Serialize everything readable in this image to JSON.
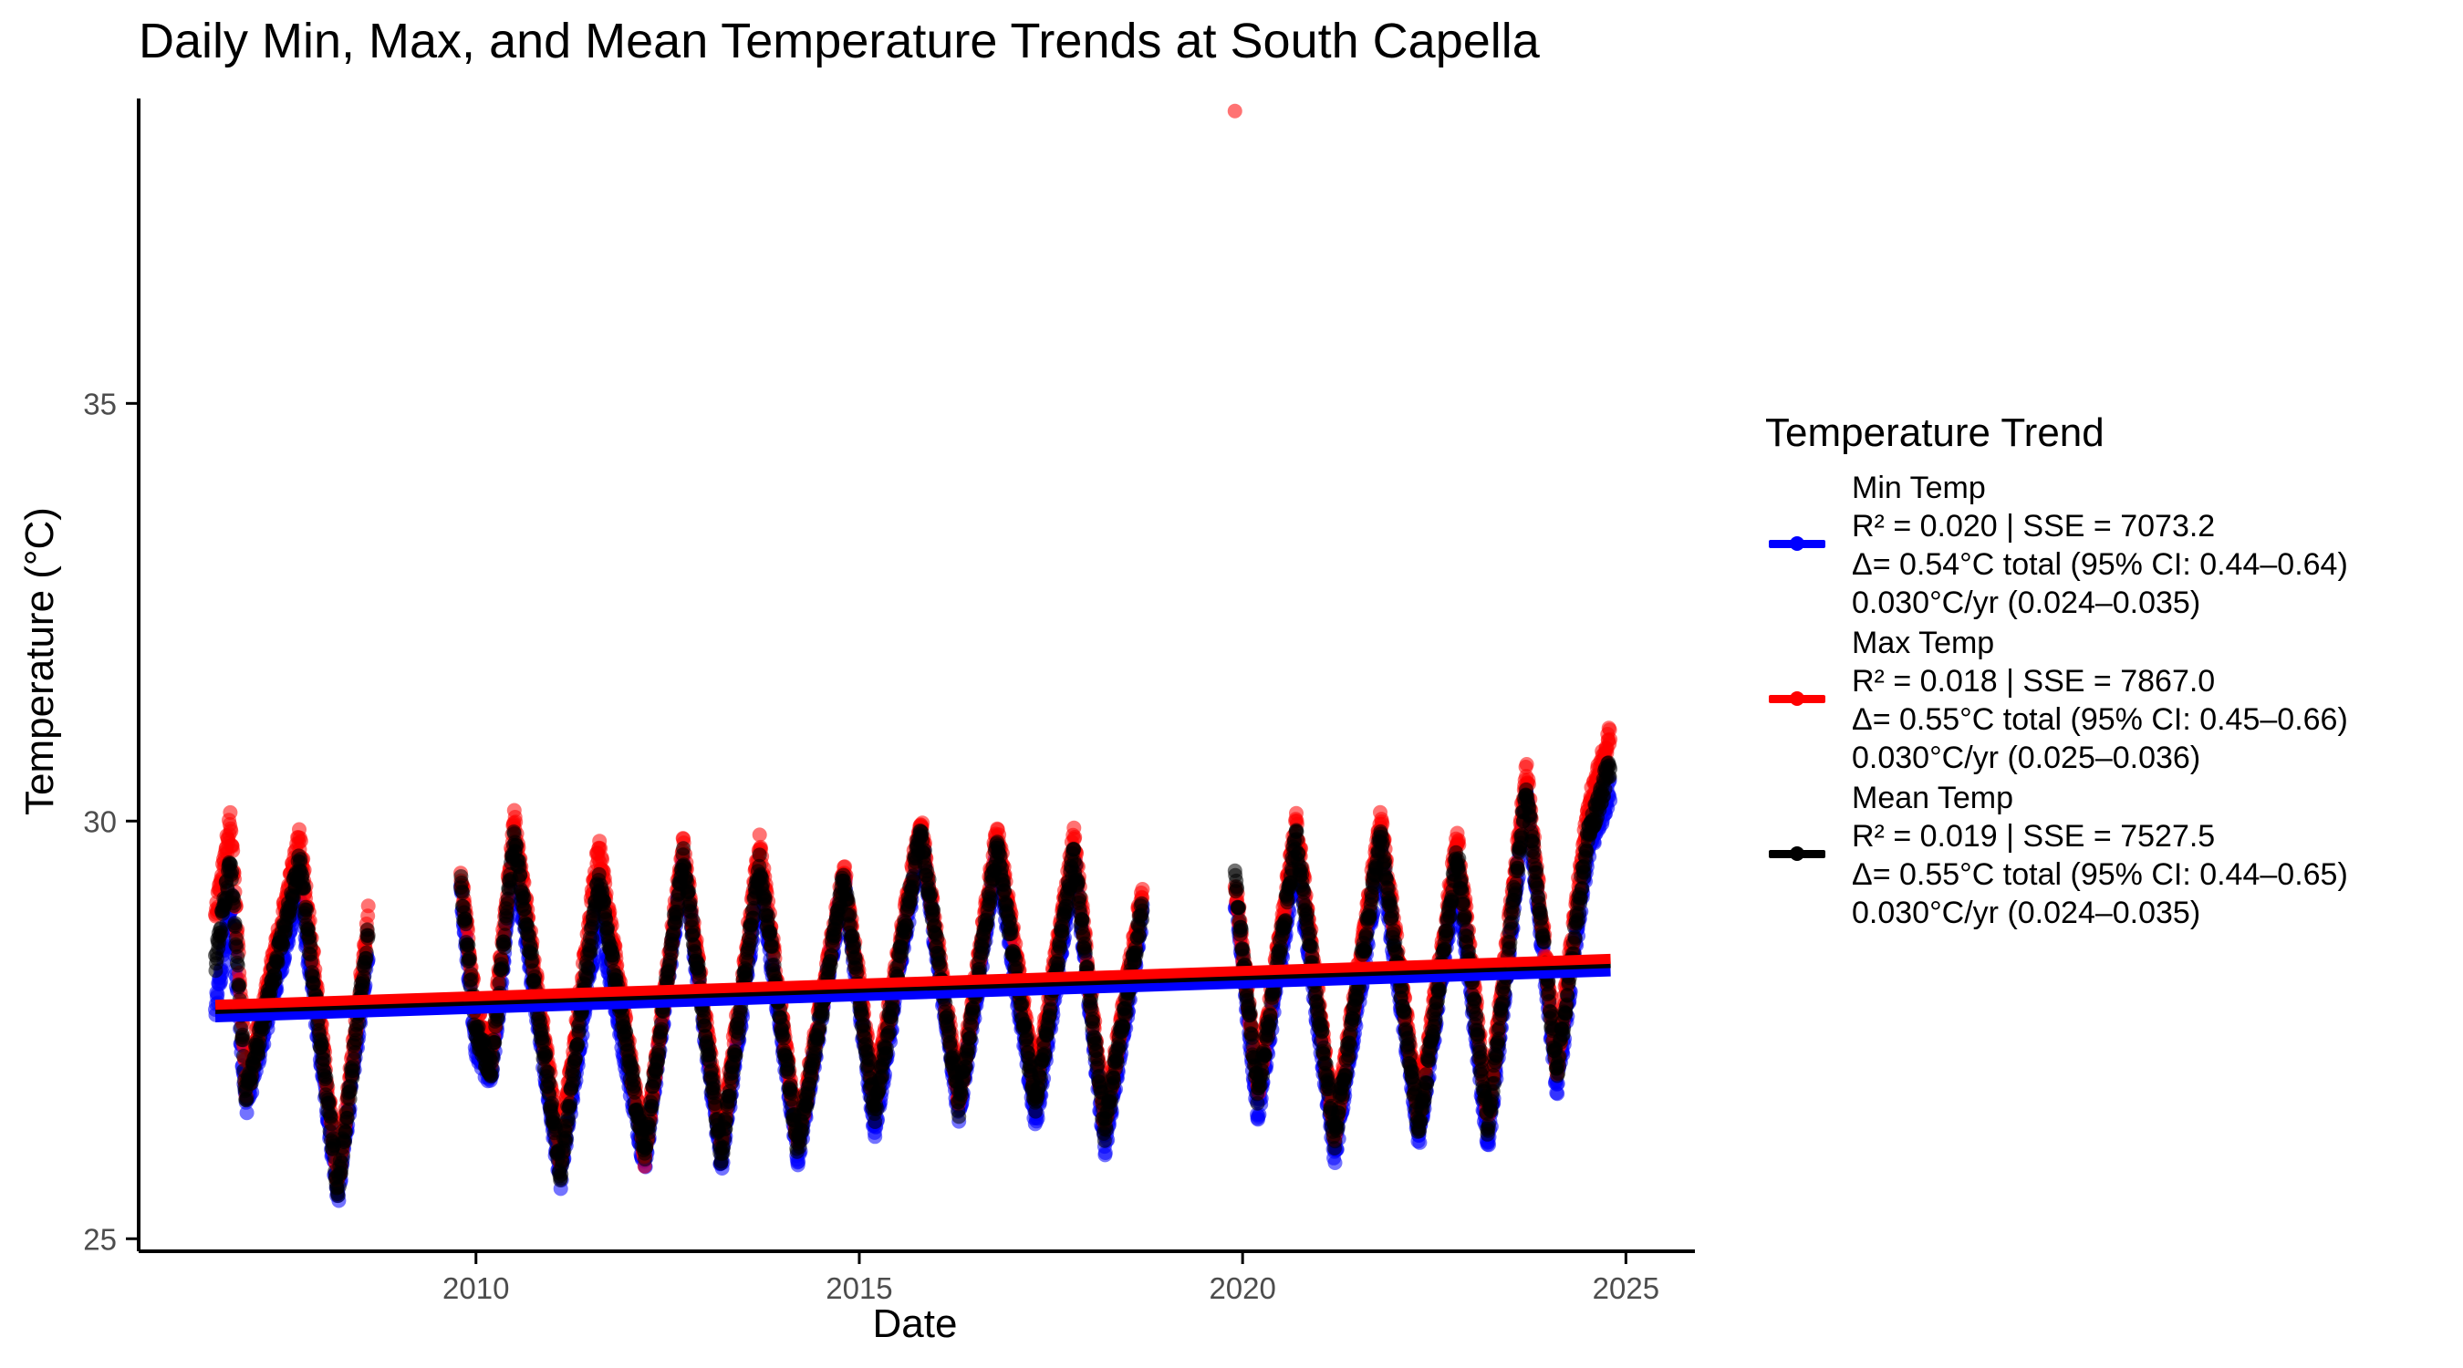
{
  "chart_data": {
    "type": "scatter",
    "title": "Daily Min, Max, and Mean Temperature Trends at South Capella",
    "xlabel": "Date",
    "ylabel": "Temperature (°C)",
    "xlim": [
      2005.6,
      2025.9
    ],
    "ylim": [
      24.85,
      38.65
    ],
    "x_ticks": [
      2010,
      2015,
      2020,
      2025
    ],
    "y_ticks": [
      25,
      30,
      35
    ],
    "grid": false,
    "legend_position": "right",
    "legend_title": "Temperature Trend",
    "series": [
      {
        "name": "Min Temp",
        "color": "#0000ff",
        "stats": [
          "R² = 0.020 | SSE = 7073.2",
          "Δ= 0.54°C total (95% CI: 0.44–0.64)",
          "0.030°C/yr (0.024–0.035)"
        ],
        "trend": {
          "x": [
            2006.6,
            2024.8
          ],
          "y": [
            27.65,
            28.2
          ]
        },
        "anchors": [
          [
            2006.6,
            27.7
          ],
          [
            2006.8,
            29.0
          ],
          [
            2007.0,
            26.6
          ],
          [
            2007.7,
            29.2
          ],
          [
            2008.2,
            25.5
          ],
          [
            2008.6,
            28.5
          ],
          [
            2009.8,
            29.2
          ],
          [
            2010.0,
            27.3
          ],
          [
            2010.2,
            26.9
          ],
          [
            2010.5,
            29.6
          ],
          [
            2011.1,
            25.7
          ],
          [
            2011.6,
            28.9
          ],
          [
            2012.2,
            25.9
          ],
          [
            2012.7,
            29.5
          ],
          [
            2013.2,
            25.9
          ],
          [
            2013.7,
            29.3
          ],
          [
            2014.2,
            26.0
          ],
          [
            2014.8,
            29.3
          ],
          [
            2015.2,
            26.3
          ],
          [
            2015.8,
            29.8
          ],
          [
            2016.3,
            26.5
          ],
          [
            2016.8,
            29.6
          ],
          [
            2017.3,
            26.4
          ],
          [
            2017.8,
            29.5
          ],
          [
            2018.2,
            26.1
          ],
          [
            2018.7,
            28.9
          ],
          [
            2019.9,
            29.1
          ],
          [
            2020.2,
            26.5
          ],
          [
            2020.7,
            29.6
          ],
          [
            2021.2,
            26.0
          ],
          [
            2021.8,
            29.6
          ],
          [
            2022.3,
            26.2
          ],
          [
            2022.8,
            29.4
          ],
          [
            2023.2,
            26.1
          ],
          [
            2023.7,
            30.3
          ],
          [
            2024.1,
            26.8
          ],
          [
            2024.5,
            29.6
          ],
          [
            2024.8,
            30.4
          ]
        ]
      },
      {
        "name": "Max Temp",
        "color": "#ff0000",
        "stats": [
          "R² = 0.018 | SSE = 7867.0",
          "Δ= 0.55°C total (95% CI: 0.45–0.66)",
          "0.030°C/yr (0.025–0.036)"
        ],
        "trend": {
          "x": [
            2006.6,
            2024.8
          ],
          "y": [
            27.8,
            28.35
          ]
        },
        "anchors": [
          [
            2006.6,
            28.9
          ],
          [
            2006.8,
            30.0
          ],
          [
            2007.0,
            26.8
          ],
          [
            2007.7,
            29.8
          ],
          [
            2008.2,
            25.7
          ],
          [
            2008.6,
            28.9
          ],
          [
            2009.8,
            29.4
          ],
          [
            2010.0,
            27.7
          ],
          [
            2010.2,
            27.2
          ],
          [
            2010.5,
            30.0
          ],
          [
            2011.1,
            26.0
          ],
          [
            2011.6,
            29.7
          ],
          [
            2012.2,
            26.0
          ],
          [
            2012.7,
            29.7
          ],
          [
            2013.2,
            26.2
          ],
          [
            2013.7,
            29.7
          ],
          [
            2014.2,
            26.2
          ],
          [
            2014.8,
            29.4
          ],
          [
            2015.2,
            26.7
          ],
          [
            2015.8,
            30.0
          ],
          [
            2016.3,
            26.7
          ],
          [
            2016.8,
            29.9
          ],
          [
            2017.3,
            26.8
          ],
          [
            2017.8,
            29.8
          ],
          [
            2018.2,
            26.4
          ],
          [
            2018.7,
            29.2
          ],
          [
            2019.9,
            29.3
          ],
          [
            2020.2,
            26.8
          ],
          [
            2020.7,
            30.0
          ],
          [
            2021.2,
            26.3
          ],
          [
            2021.8,
            30.0
          ],
          [
            2022.3,
            26.5
          ],
          [
            2022.8,
            29.8
          ],
          [
            2023.2,
            26.5
          ],
          [
            2023.7,
            30.6
          ],
          [
            2024.1,
            27.1
          ],
          [
            2024.5,
            30.1
          ],
          [
            2024.8,
            31.1
          ]
        ],
        "outliers": [
          [
            2019.9,
            38.5
          ]
        ]
      },
      {
        "name": "Mean Temp",
        "color": "#000000",
        "stats": [
          "R² = 0.019 | SSE = 7527.5",
          "Δ= 0.55°C total (95% CI: 0.44–0.65)",
          "0.030°C/yr (0.024–0.035)"
        ],
        "trend": {
          "x": [
            2006.6,
            2024.8
          ],
          "y": [
            27.75,
            28.3
          ]
        },
        "anchors": [
          [
            2006.6,
            28.3
          ],
          [
            2006.8,
            29.5
          ],
          [
            2007.0,
            26.7
          ],
          [
            2007.7,
            29.5
          ],
          [
            2008.2,
            25.6
          ],
          [
            2008.6,
            28.7
          ],
          [
            2009.8,
            29.3
          ],
          [
            2010.0,
            27.5
          ],
          [
            2010.2,
            27.0
          ],
          [
            2010.5,
            29.8
          ],
          [
            2011.1,
            25.8
          ],
          [
            2011.6,
            29.3
          ],
          [
            2012.2,
            26.0
          ],
          [
            2012.7,
            29.6
          ],
          [
            2013.2,
            26.0
          ],
          [
            2013.7,
            29.5
          ],
          [
            2014.2,
            26.1
          ],
          [
            2014.8,
            29.3
          ],
          [
            2015.2,
            26.5
          ],
          [
            2015.8,
            29.9
          ],
          [
            2016.3,
            26.6
          ],
          [
            2016.8,
            29.7
          ],
          [
            2017.3,
            26.6
          ],
          [
            2017.8,
            29.6
          ],
          [
            2018.2,
            26.3
          ],
          [
            2018.7,
            29.0
          ],
          [
            2019.9,
            29.3
          ],
          [
            2020.2,
            26.7
          ],
          [
            2020.7,
            29.8
          ],
          [
            2021.2,
            26.2
          ],
          [
            2021.8,
            29.8
          ],
          [
            2022.3,
            26.3
          ],
          [
            2022.8,
            29.6
          ],
          [
            2023.2,
            26.3
          ],
          [
            2023.7,
            30.4
          ],
          [
            2024.1,
            27.0
          ],
          [
            2024.5,
            29.8
          ],
          [
            2024.8,
            30.7
          ]
        ]
      }
    ]
  }
}
